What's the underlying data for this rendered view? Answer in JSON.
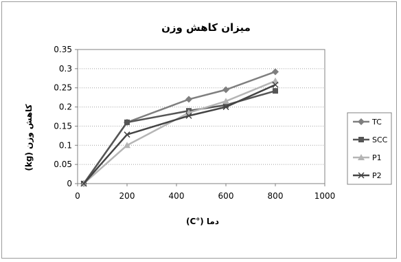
{
  "chart_data": {
    "type": "line",
    "title": "میزان کاهش وزن",
    "xlabel": "دما (°C)",
    "ylabel": "کاهش وزن (kg)",
    "xlim": [
      0,
      1000
    ],
    "ylim": [
      0,
      0.35
    ],
    "x_ticks": [
      "0",
      "200",
      "400",
      "600",
      "800",
      "1000"
    ],
    "y_ticks": [
      "0",
      "0.05",
      "0.1",
      "0.15",
      "0.2",
      "0.25",
      "0.3",
      "0.35"
    ],
    "grid": "horizontal dotted",
    "legend_position": "right",
    "series": [
      {
        "name": "TC",
        "color": "#7f7f7f",
        "marker": "diamond",
        "x": [
          25,
          200,
          450,
          600,
          800
        ],
        "values": [
          0,
          0.16,
          0.22,
          0.245,
          0.292
        ]
      },
      {
        "name": "SCC",
        "color": "#555555",
        "marker": "square",
        "x": [
          25,
          200,
          450,
          600,
          800
        ],
        "values": [
          0,
          0.16,
          0.19,
          0.205,
          0.242
        ]
      },
      {
        "name": "P1",
        "color": "#b5b5b5",
        "marker": "triangle",
        "x": [
          25,
          200,
          450,
          600,
          800
        ],
        "values": [
          0,
          0.1,
          0.185,
          0.215,
          0.268
        ]
      },
      {
        "name": "P2",
        "color": "#444444",
        "marker": "x",
        "x": [
          25,
          200,
          450,
          600,
          800
        ],
        "values": [
          0,
          0.128,
          0.177,
          0.2,
          0.258
        ]
      }
    ]
  }
}
